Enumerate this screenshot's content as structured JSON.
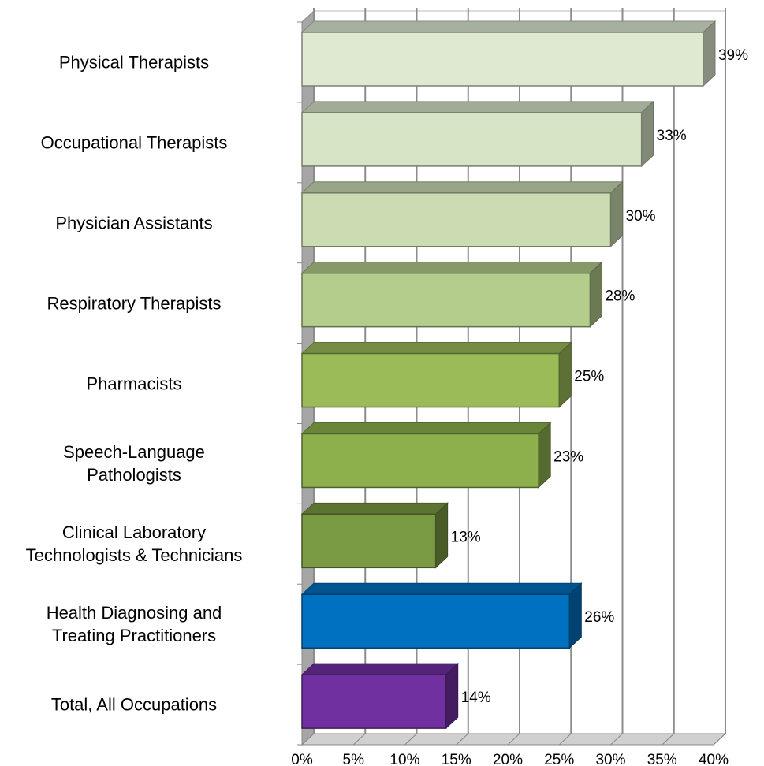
{
  "chart_data": {
    "type": "bar3d_horizontal",
    "categories": [
      "Physical Therapists",
      "Occupational Therapists",
      "Physician Assistants",
      "Respiratory Therapists",
      "Pharmacists",
      "Speech-Language\nPathologists",
      "Clinical Laboratory\nTechnologists & Technicians",
      "Health Diagnosing and\nTreating Practitioners",
      "Total, All Occupations"
    ],
    "values": [
      39,
      33,
      30,
      28,
      25,
      23,
      13,
      26,
      14
    ],
    "value_labels": [
      "39%",
      "33%",
      "30%",
      "28%",
      "25%",
      "23%",
      "13%",
      "26%",
      "14%"
    ],
    "colors": [
      "#dfe9d2",
      "#d7e4c6",
      "#cbdcb3",
      "#b4cc8c",
      "#9bbb59",
      "#8db04d",
      "#7a9a43",
      "#0070c0",
      "#7030a0"
    ],
    "xlim": [
      0,
      40
    ],
    "xticks": [
      {
        "value": 0,
        "label": "0%"
      },
      {
        "value": 5,
        "label": "5%"
      },
      {
        "value": 10,
        "label": "10%"
      },
      {
        "value": 15,
        "label": "15%"
      },
      {
        "value": 20,
        "label": "20%"
      },
      {
        "value": 25,
        "label": "25%"
      },
      {
        "value": 30,
        "label": "30%"
      },
      {
        "value": 35,
        "label": "35%"
      },
      {
        "value": 40,
        "label": "40%"
      }
    ],
    "grid": true
  }
}
